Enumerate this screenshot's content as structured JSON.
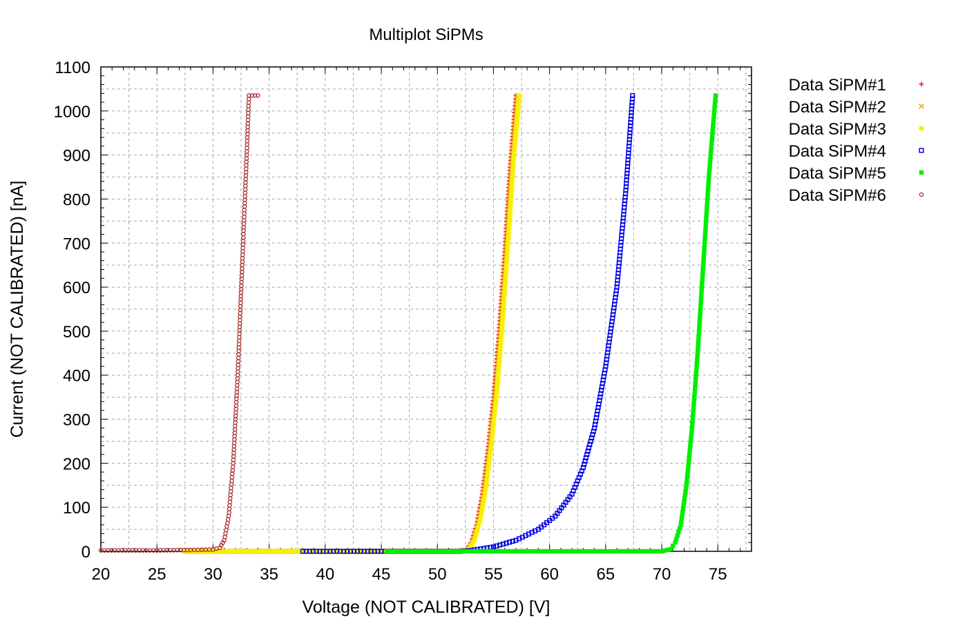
{
  "chart_data": {
    "type": "scatter",
    "title": "Multiplot SiPMs",
    "xlabel": "Voltage (NOT CALIBRATED) [V]",
    "ylabel": "Current (NOT CALIBRATED) [nA]",
    "xlim": [
      20,
      78
    ],
    "ylim": [
      0,
      1100
    ],
    "x_ticks": [
      20,
      25,
      30,
      35,
      40,
      45,
      50,
      55,
      60,
      65,
      70,
      75
    ],
    "x_tick_labels": [
      "20",
      "25",
      "30",
      "35",
      "40",
      "45",
      "50",
      "55",
      "60",
      "65",
      "70",
      "75"
    ],
    "y_ticks": [
      0,
      100,
      200,
      300,
      400,
      500,
      600,
      700,
      800,
      900,
      1000,
      1100
    ],
    "y_tick_labels": [
      "0",
      "100",
      "200",
      "300",
      "400",
      "500",
      "600",
      "700",
      "800",
      "900",
      "1000",
      "1100"
    ],
    "grid": true,
    "legend_position": "outside-right",
    "series": [
      {
        "name": "Data SiPM#1",
        "color": "#e8211e",
        "marker": "plus",
        "points": [
          [
            27.5,
            0
          ],
          [
            35,
            0
          ],
          [
            45,
            0
          ],
          [
            52,
            0
          ],
          [
            52.6,
            5
          ],
          [
            53.0,
            20
          ],
          [
            53.5,
            60
          ],
          [
            54.0,
            130
          ],
          [
            54.5,
            230
          ],
          [
            55.0,
            350
          ],
          [
            55.5,
            500
          ],
          [
            56.0,
            680
          ],
          [
            56.5,
            880
          ],
          [
            57.0,
            1035
          ]
        ]
      },
      {
        "name": "Data SiPM#2",
        "color": "#f5a623",
        "marker": "cross",
        "points": [
          [
            27.5,
            0
          ],
          [
            35,
            0
          ],
          [
            45,
            0
          ],
          [
            52,
            0
          ],
          [
            52.7,
            5
          ],
          [
            53.1,
            20
          ],
          [
            53.6,
            60
          ],
          [
            54.1,
            130
          ],
          [
            54.6,
            230
          ],
          [
            55.1,
            350
          ],
          [
            55.6,
            500
          ],
          [
            56.1,
            680
          ],
          [
            56.6,
            880
          ],
          [
            57.1,
            1035
          ]
        ]
      },
      {
        "name": "Data SiPM#3",
        "color": "#f7f100",
        "marker": "star",
        "points": [
          [
            27.5,
            0
          ],
          [
            35,
            0
          ],
          [
            45,
            0
          ],
          [
            52,
            0
          ],
          [
            52.8,
            5
          ],
          [
            53.3,
            25
          ],
          [
            53.8,
            70
          ],
          [
            54.3,
            140
          ],
          [
            54.8,
            240
          ],
          [
            55.3,
            360
          ],
          [
            55.8,
            520
          ],
          [
            56.3,
            700
          ],
          [
            56.8,
            890
          ],
          [
            57.3,
            1035
          ]
        ]
      },
      {
        "name": "Data SiPM#4",
        "color": "#0000e6",
        "marker": "square",
        "points": [
          [
            38,
            0
          ],
          [
            45,
            0
          ],
          [
            52,
            0
          ],
          [
            53,
            2
          ],
          [
            55,
            10
          ],
          [
            57,
            25
          ],
          [
            59,
            50
          ],
          [
            60.5,
            80
          ],
          [
            62,
            130
          ],
          [
            63,
            190
          ],
          [
            64,
            280
          ],
          [
            65,
            420
          ],
          [
            66,
            600
          ],
          [
            66.8,
            820
          ],
          [
            67.4,
            1035
          ]
        ]
      },
      {
        "name": "Data SiPM#5",
        "color": "#00ee00",
        "marker": "filled-square",
        "points": [
          [
            45.5,
            0
          ],
          [
            55,
            0
          ],
          [
            65,
            0
          ],
          [
            70,
            0
          ],
          [
            70.8,
            5
          ],
          [
            71.2,
            20
          ],
          [
            71.7,
            60
          ],
          [
            72.2,
            150
          ],
          [
            72.7,
            280
          ],
          [
            73.2,
            450
          ],
          [
            73.7,
            650
          ],
          [
            74.2,
            850
          ],
          [
            74.8,
            1035
          ]
        ]
      },
      {
        "name": "Data SiPM#6",
        "color": "#a52a2a",
        "marker": "circle",
        "points": [
          [
            20,
            2
          ],
          [
            25,
            2
          ],
          [
            28,
            3
          ],
          [
            30,
            4
          ],
          [
            30.6,
            8
          ],
          [
            31.0,
            25
          ],
          [
            31.4,
            80
          ],
          [
            31.8,
            200
          ],
          [
            32.2,
            400
          ],
          [
            32.6,
            650
          ],
          [
            33.0,
            900
          ],
          [
            33.2,
            1035
          ],
          [
            34.0,
            1035
          ]
        ]
      }
    ]
  }
}
